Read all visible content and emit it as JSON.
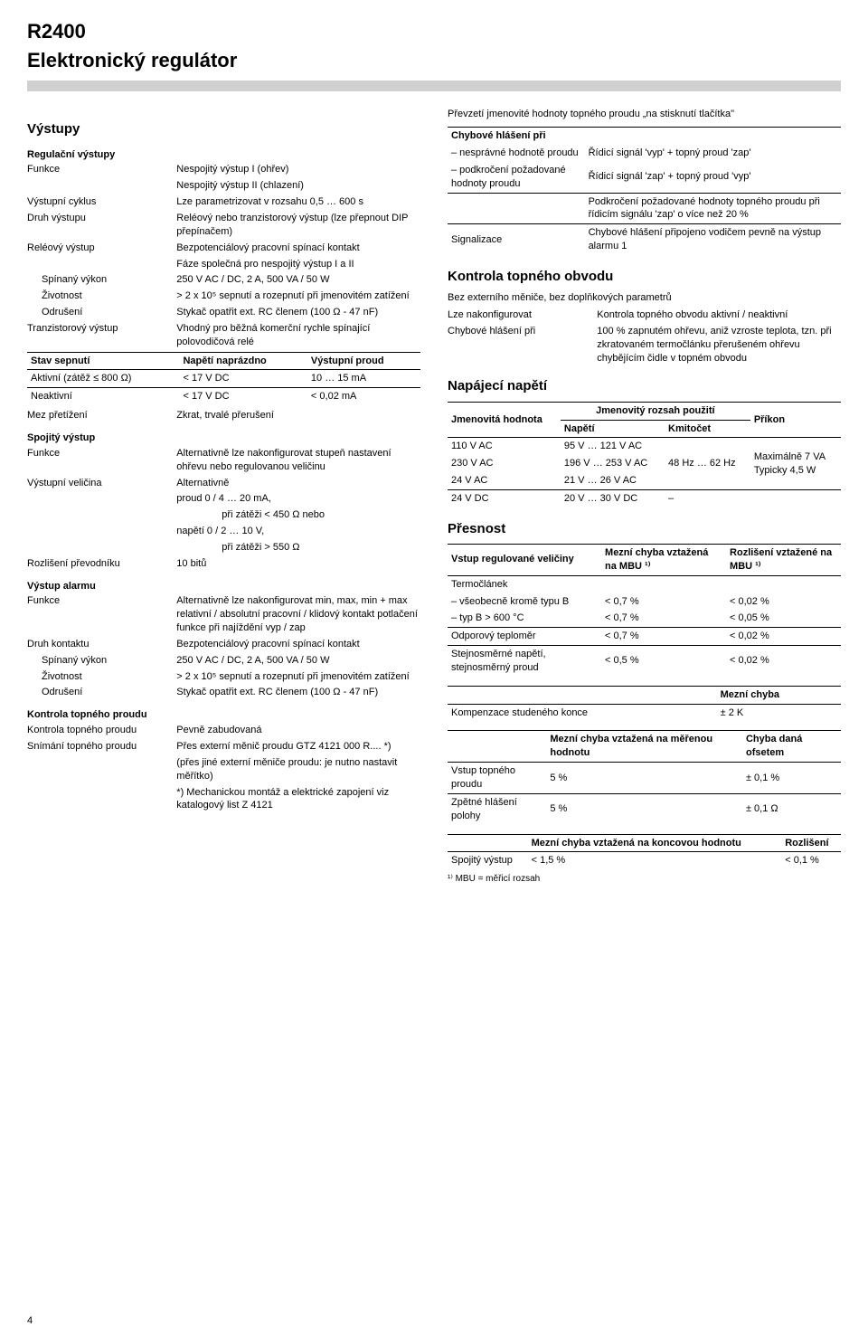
{
  "header": {
    "model": "R2400",
    "subtitle": "Elektronický regulátor"
  },
  "left": {
    "sec_vystupy": "Výstupy",
    "sub_regulacni": "Regulační výstupy",
    "rows_regulacni": [
      {
        "k": "Funkce",
        "v": "Nespojitý výstup I (ohřev)"
      },
      {
        "k": "",
        "v": "Nespojitý výstup II (chlazení)"
      },
      {
        "k": "Výstupní cyklus",
        "v": "Lze parametrizovat v rozsahu 0,5 … 600 s"
      },
      {
        "k": "Druh výstupu",
        "v": "Reléový nebo tranzistorový výstup (lze přepnout DIP přepínačem)"
      },
      {
        "k": "Reléový výstup",
        "v": "Bezpotenciálový pracovní spínací kontakt"
      },
      {
        "k": "",
        "v": "Fáze společná pro nespojitý výstup I a II"
      },
      {
        "k": "Spínaný výkon",
        "v": "250 V AC / DC, 2 A, 500 VA / 50 W",
        "indent": true
      },
      {
        "k": "Životnost",
        "v": "> 2 x 10⁵ sepnutí a rozepnutí při jmenovitém zatížení",
        "indent": true
      },
      {
        "k": "Odrušení",
        "v": "Stykač opatřit ext. RC členem (100 Ω - 47 nF)",
        "indent": true
      },
      {
        "k": "Tranzistorový výstup",
        "v": "Vhodný pro běžná komerční rychle spínající polovodičová relé"
      }
    ],
    "tbl_stav": {
      "headers": [
        "Stav sepnutí",
        "Napětí naprázdno",
        "Výstupní proud"
      ],
      "rows": [
        [
          "Aktivní (zátěž ≤ 800 Ω)",
          "< 17 V DC",
          "10 … 15 mA"
        ],
        [
          "Neaktivní",
          "< 17 V DC",
          "< 0,02 mA"
        ]
      ]
    },
    "row_mez": {
      "k": "Mez přetížení",
      "v": "Zkrat, trvalé přerušení"
    },
    "sub_spojity": "Spojitý výstup",
    "rows_spojity": [
      {
        "k": "Funkce",
        "v": "Alternativně lze nakonfigurovat stupeň nastavení ohřevu nebo regulovanou veličinu"
      },
      {
        "k": "Výstupní veličina",
        "v": "Alternativně"
      },
      {
        "k": "",
        "v": "proud   0 / 4 … 20 mA,",
        "indent2": true
      },
      {
        "k": "",
        "v": "při zátěži < 450 Ω nebo",
        "indent3": true
      },
      {
        "k": "",
        "v": "napětí  0 / 2 … 10 V,",
        "indent2": true
      },
      {
        "k": "",
        "v": "při zátěži > 550 Ω",
        "indent3": true
      },
      {
        "k": "Rozlišení převodníku",
        "v": "10 bitů"
      }
    ],
    "sub_alarm": "Výstup alarmu",
    "rows_alarm": [
      {
        "k": "Funkce",
        "v": "Alternativně lze nakonfigurovat min, max, min + max relativní / absolutní pracovní / klidový kontakt potlačení funkce při najíždění vyp / zap"
      },
      {
        "k": "Druh kontaktu",
        "v": "Bezpotenciálový pracovní spínací kontakt"
      },
      {
        "k": "Spínaný výkon",
        "v": "250 V AC / DC, 2 A, 500 VA / 50 W",
        "indent": true
      },
      {
        "k": "Životnost",
        "v": "> 2 x 10⁵ sepnutí a rozepnutí při jmenovitém zatížení",
        "indent": true
      },
      {
        "k": "Odrušení",
        "v": "Stykač opatřit ext. RC členem (100 Ω - 47 nF)",
        "indent": true
      }
    ],
    "sub_kontrola": "Kontrola topného proudu",
    "rows_kontrola": [
      {
        "k": "Kontrola topného proudu",
        "v": "Pevně zabudovaná"
      },
      {
        "k": "Snímání topného proudu",
        "v": "Přes externí měnič proudu GTZ 4121 000 R.... *)"
      },
      {
        "k": "",
        "v": "(přes jiné externí měniče proudu: je nutno nastavit měřítko)"
      },
      {
        "k": "",
        "v": "*) Mechanickou montáž a elektrické zapojení viz katalogový list Z 4121"
      }
    ]
  },
  "right": {
    "prevzeti_text": "Převzetí jmenovité hodnoty topného proudu „na stisknutí tlačítka\"",
    "tbl_chybove": {
      "col1_h": "Chybové hlášení při",
      "rows": [
        [
          "– nesprávné hodnotě proudu",
          "Řídicí signál 'vyp' + topný proud 'zap'"
        ],
        [
          "– podkročení požadované hodnoty proudu",
          "Řídicí signál 'zap' + topný proud 'vyp'"
        ],
        [
          "",
          "Podkročení požadované hodnoty topného proudu při řídicím signálu 'zap' o více než 20 %"
        ],
        [
          "Signalizace",
          "Chybové hlášení připojeno vodičem pevně na výstup alarmu 1"
        ]
      ]
    },
    "sec_kontrola_obvodu": "Kontrola topného obvodu",
    "kontrola_sub": "Bez externího měniče, bez doplňkových parametrů",
    "rows_kontrola_obvodu": [
      {
        "k": "Lze nakonfigurovat",
        "v": "Kontrola topného obvodu aktivní / neaktivní"
      },
      {
        "k": "Chybové hlášení při",
        "v": "100 % zapnutém ohřevu, aniž vzroste teplota, tzn. při zkratovaném termočlánku přerušeném ohřevu chybějícím čidle v topném obvodu"
      }
    ],
    "sec_napajeci": "Napájecí napětí",
    "tbl_napajeci": {
      "h1": "Jmenovitá hodnota",
      "h2": "Jmenovitý rozsah použití",
      "h3": "Příkon",
      "h2a": "Napětí",
      "h2b": "Kmitočet",
      "rows": [
        [
          "110 V AC",
          "95 V … 121 V AC",
          "",
          ""
        ],
        [
          "230 V AC",
          "196 V … 253 V AC",
          "48 Hz … 62 Hz",
          "Maximálně 7 VA"
        ],
        [
          "24 V AC",
          "21 V … 26 V AC",
          "",
          "Typicky 4,5 W"
        ],
        [
          "24 V DC",
          "20 V … 30 V DC",
          "–",
          ""
        ]
      ]
    },
    "sec_presnost": "Přesnost",
    "tbl_pres1": {
      "h": [
        "Vstup regulované veličiny",
        "Mezní chyba vztažená na MBU ¹⁾",
        "Rozlišení vztažené na MBU ¹⁾"
      ],
      "rows": [
        [
          "Termočlánek",
          "",
          ""
        ],
        [
          "– všeobecně kromě typu B",
          "< 0,7 %",
          "< 0,02 %"
        ],
        [
          "– typ B > 600 °C",
          "< 0,7 %",
          "< 0,05 %"
        ],
        [
          "Odporový teploměr",
          "< 0,7 %",
          "< 0,02 %"
        ],
        [
          "Stejnosměrné napětí, stejnosměrný proud",
          "< 0,5 %",
          "< 0,02 %"
        ]
      ]
    },
    "tbl_pres2": {
      "h": [
        "",
        "Mezní chyba"
      ],
      "rows": [
        [
          "Kompenzace studeného konce",
          "± 2 K"
        ]
      ]
    },
    "tbl_pres3": {
      "h": [
        "",
        "Mezní chyba vztažená na měřenou hodnotu",
        "Chyba daná ofsetem"
      ],
      "rows": [
        [
          "Vstup topného proudu",
          "5 %",
          "± 0,1 %"
        ],
        [
          "Zpětné hlášení polohy",
          "5 %",
          "± 0,1 Ω"
        ]
      ]
    },
    "tbl_pres4": {
      "h": [
        "",
        "Mezní chyba vztažená na koncovou hodnotu",
        "Rozlišení"
      ],
      "rows": [
        [
          "Spojitý výstup",
          "< 1,5 %",
          "< 0,1 %"
        ]
      ]
    },
    "mbu_note": "¹⁾ MBU = měřicí rozsah"
  },
  "pagenum": "4"
}
